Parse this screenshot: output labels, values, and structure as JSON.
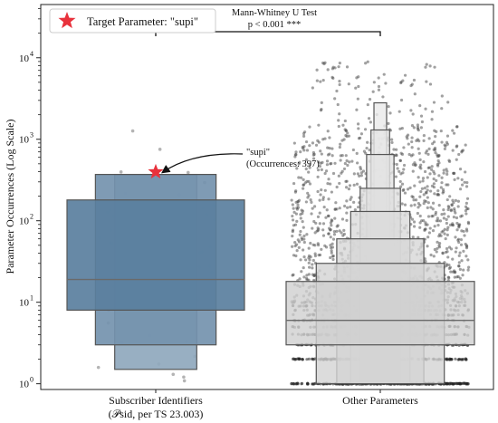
{
  "chart_data": {
    "type": "boxen",
    "ylabel": "Parameter Occurrences (Log Scale)",
    "yscale": "log",
    "ylim": [
      0.85,
      45000
    ],
    "yticks": [
      {
        "base": "10",
        "exp": "0",
        "value": 1
      },
      {
        "base": "10",
        "exp": "1",
        "value": 10
      },
      {
        "base": "10",
        "exp": "2",
        "value": 100
      },
      {
        "base": "10",
        "exp": "3",
        "value": 1000
      },
      {
        "base": "10",
        "exp": "4",
        "value": 10000
      }
    ],
    "categories": [
      {
        "label_line1": "Subscriber Identifiers",
        "label_line2": "(𝒫sid, per TS 23.003)",
        "color": "#5a7f9e",
        "median": 19,
        "boxes": [
          {
            "low": 8,
            "high": 180
          },
          {
            "low": 3,
            "high": 370
          },
          {
            "low": 1.5,
            "high": 370
          }
        ]
      },
      {
        "label_line1": "Other Parameters",
        "label_line2": "",
        "color": "#cfcfcf",
        "median": 6,
        "boxes": [
          {
            "low": 3,
            "high": 18
          },
          {
            "low": 1,
            "high": 30
          },
          {
            "low": 1,
            "high": 60
          },
          {
            "low": 1,
            "high": 130
          },
          {
            "low": 1,
            "high": 250
          },
          {
            "low": 1,
            "high": 650
          },
          {
            "low": 1,
            "high": 1300
          },
          {
            "low": 1,
            "high": 2800
          }
        ]
      }
    ],
    "highlight": {
      "legend_label": "Target Parameter: \"supi\"",
      "name": "\"supi\"",
      "occurrences_label": "(Occurrences: 397)",
      "value": 397,
      "color": "#e8323c"
    },
    "significance": {
      "test": "Mann-Whitney U Test",
      "p_text": "p < 0.001 ***"
    },
    "grid": false,
    "legend_position": "top-left"
  }
}
